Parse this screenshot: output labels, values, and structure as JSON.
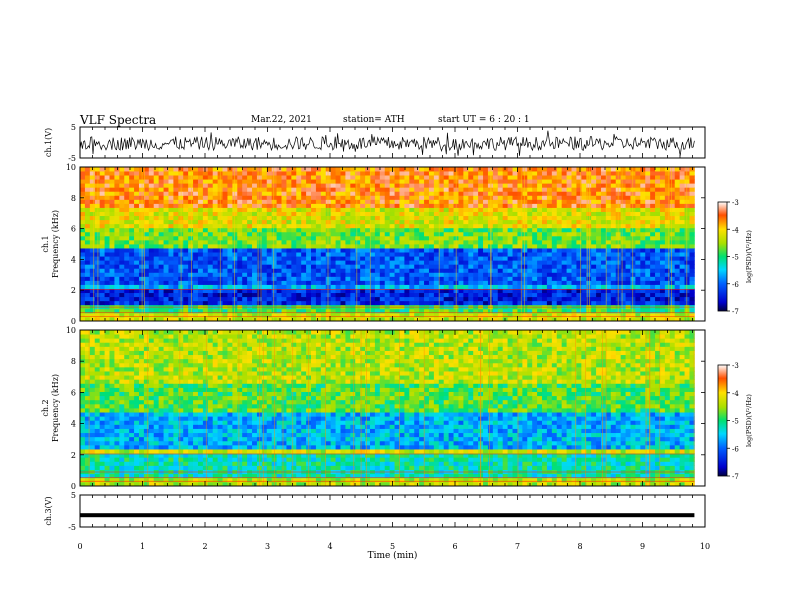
{
  "header": {
    "title": "VLF Spectra",
    "date": "Mar.22, 2021",
    "station": "station= ATH",
    "start": "start  UT =   6 : 20 : 1"
  },
  "chart_data": [
    {
      "type": "line",
      "panel": "ch1-waveform",
      "ylabel": "ch.1(V)",
      "ylim": [
        -5,
        5
      ],
      "yticks": [
        "5",
        "-5"
      ],
      "xlim": [
        0,
        10
      ],
      "series_color": "#000000",
      "description_level": "noisy waveform mostly between -2 and 2 V"
    },
    {
      "type": "heatmap",
      "panel": "ch1-spectrogram",
      "ylabel": "ch.1\nFrequency (kHz)",
      "ylabel_lines": [
        "ch.1",
        "Frequency (kHz)"
      ],
      "ylim": [
        0,
        10
      ],
      "yticks": [
        "0",
        "2",
        "4",
        "6",
        "8",
        "10"
      ],
      "xlim": [
        0,
        10
      ],
      "colorbar": {
        "label": "log(PSD)(V²/Hz)",
        "range": [
          -7,
          -3
        ],
        "ticks": [
          "-3",
          "-4",
          "-5",
          "-6",
          "-7"
        ]
      },
      "bands": [
        {
          "from": 0,
          "to": 0.6,
          "level": -4.3
        },
        {
          "from": 0.6,
          "to": 1.0,
          "level": -4.9
        },
        {
          "from": 1.0,
          "to": 2.0,
          "level": -6.4
        },
        {
          "from": 2.0,
          "to": 2.4,
          "level": -5.6
        },
        {
          "from": 2.4,
          "to": 4.8,
          "level": -6.1
        },
        {
          "from": 4.8,
          "to": 6.0,
          "level": -4.7
        },
        {
          "from": 6.0,
          "to": 7.5,
          "level": -4.2
        },
        {
          "from": 7.5,
          "to": 10.0,
          "level": -3.6
        }
      ]
    },
    {
      "type": "heatmap",
      "panel": "ch2-spectrogram",
      "ylabel": "ch.2\nFrequency (kHz)",
      "ylabel_lines": [
        "ch.2",
        "Frequency (kHz)"
      ],
      "ylim": [
        0,
        10
      ],
      "yticks": [
        "0",
        "2",
        "4",
        "6",
        "8",
        "10"
      ],
      "xlim": [
        0,
        10
      ],
      "colorbar": {
        "label": "log(PSD)(V²/Hz)",
        "range": [
          -7,
          -3
        ],
        "ticks": [
          "-3",
          "-4",
          "-5",
          "-6",
          "-7"
        ]
      },
      "bands": [
        {
          "from": 0,
          "to": 0.6,
          "level": -4.4
        },
        {
          "from": 0.6,
          "to": 2.0,
          "level": -5.2
        },
        {
          "from": 2.0,
          "to": 2.3,
          "level": -4.3
        },
        {
          "from": 2.3,
          "to": 4.8,
          "level": -5.6
        },
        {
          "from": 4.8,
          "to": 6.5,
          "level": -4.8
        },
        {
          "from": 6.5,
          "to": 10.0,
          "level": -4.4
        }
      ]
    },
    {
      "type": "line",
      "panel": "ch3-waveform",
      "ylabel": "ch.3(V)",
      "ylim": [
        -5,
        5
      ],
      "yticks": [
        "5",
        "-5"
      ],
      "xlim": [
        0,
        10
      ],
      "series_color": "#000000",
      "description_level": "flat trace near -1 V"
    }
  ],
  "xaxis": {
    "label": "Time  (min)",
    "ticks": [
      "0",
      "1",
      "2",
      "3",
      "4",
      "5",
      "6",
      "7",
      "8",
      "9",
      "10"
    ],
    "range": [
      0,
      10
    ]
  }
}
